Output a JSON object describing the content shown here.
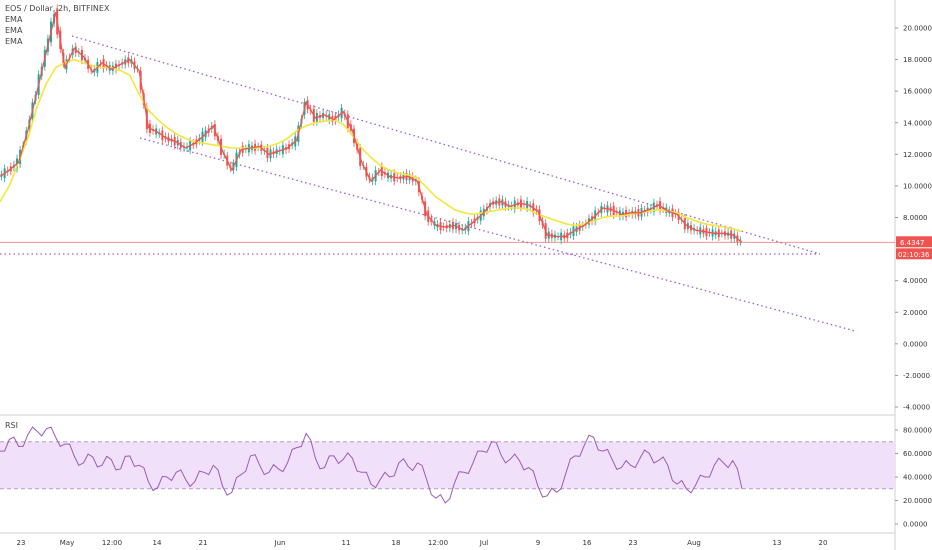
{
  "legend": {
    "symbol": "EOS / Dollar, 2h, BITFINEX",
    "indicators": [
      "EMA",
      "EMA",
      "EMA"
    ]
  },
  "price_badge": {
    "value": "6.4347",
    "time": "02:10:36",
    "color": "#ef5350"
  },
  "colors": {
    "trend_lines": "#a05ad2",
    "ema_fast": "#ef5350",
    "ema_slow": "#f5e63c",
    "up": "#26a69a",
    "down": "#ef5350",
    "rsi_line": "#9c5bb5",
    "rsi_band": "#f0e0fa"
  },
  "chart_data": [
    {
      "type": "line",
      "title": "EOS / Dollar, 2h, BITFINEX",
      "y_axis_ticks": [
        "20.0000",
        "18.0000",
        "16.0000",
        "14.0000",
        "12.0000",
        "10.0000",
        "8.0000",
        "4.0000",
        "2.0000",
        "0.0000",
        "-2.0000",
        "-4.0000"
      ],
      "ylim": [
        -4.5,
        21.5
      ],
      "x_axis_ticks": [
        "23",
        "May",
        "12:00",
        "14",
        "21",
        "Jun",
        "11",
        "18",
        "12:00",
        "Jul",
        "9",
        "16",
        "23",
        "Aug",
        "13",
        "20"
      ],
      "series": [
        {
          "values": [
            10.6,
            11.0,
            11.5,
            13.5,
            16.0,
            18.5,
            21.0,
            17.5,
            18.7,
            18.2,
            17.2,
            17.8,
            17.4,
            17.7,
            18.0,
            17.3,
            13.7,
            13.4,
            13.0,
            12.8,
            12.4,
            12.7,
            13.2,
            13.8,
            12.2,
            11.0,
            12.3,
            12.4,
            12.5,
            12.0,
            12.2,
            12.4,
            12.9,
            15.3,
            14.3,
            14.5,
            14.2,
            14.7,
            13.5,
            11.5,
            10.3,
            11.0,
            10.6,
            10.5,
            10.6,
            10.3,
            8.2,
            7.5,
            7.4,
            7.5,
            7.2,
            7.7,
            8.2,
            8.9,
            9.0,
            8.7,
            8.9,
            8.8,
            8.4,
            6.9,
            6.8,
            6.8,
            7.2,
            7.5,
            8.0,
            8.6,
            8.5,
            8.2,
            8.3,
            8.3,
            8.5,
            8.8,
            8.4,
            8.2,
            7.5,
            7.2,
            7.1,
            7.0,
            7.0,
            6.9,
            6.43
          ]
        },
        {
          "values": [
            9.0,
            10.0,
            11.5,
            13.0,
            15.0,
            16.5,
            17.5,
            17.8,
            18.0,
            17.8,
            17.6,
            17.5,
            17.5,
            17.3,
            17.0,
            15.8,
            14.8,
            14.2,
            13.7,
            13.3,
            13.0,
            12.8,
            12.7,
            12.6,
            12.5,
            12.4,
            12.4,
            12.4,
            12.4,
            12.5,
            12.7,
            13.0,
            13.5,
            13.8,
            14.0,
            14.1,
            14.2,
            13.9,
            13.2,
            12.4,
            11.8,
            11.3,
            11.0,
            10.8,
            10.7,
            10.5,
            9.9,
            9.3,
            8.9,
            8.5,
            8.3,
            8.2,
            8.3,
            8.4,
            8.5,
            8.6,
            8.6,
            8.5,
            8.2,
            8.0,
            7.8,
            7.6,
            7.5,
            7.6,
            7.8,
            8.0,
            8.1,
            8.1,
            8.2,
            8.3,
            8.4,
            8.5,
            8.4,
            8.3,
            8.0,
            7.8,
            7.6,
            7.5,
            7.4,
            7.3,
            7.1
          ]
        }
      ]
    },
    {
      "type": "line",
      "title": "RSI",
      "y_axis_ticks": [
        "80.0000",
        "60.0000",
        "40.0000",
        "20.0000",
        "0.0000"
      ],
      "ylim": [
        -5,
        88
      ],
      "bands": [
        30,
        70
      ],
      "x_axis_ticks": [
        "23",
        "May",
        "12:00",
        "14",
        "21",
        "Jun",
        "11",
        "18",
        "12:00",
        "Jul",
        "9",
        "16",
        "23",
        "Aug",
        "13",
        "20"
      ],
      "series": [
        {
          "values": [
            62,
            72,
            66,
            76,
            79,
            81,
            74,
            68,
            58,
            52,
            57,
            50,
            55,
            47,
            58,
            50,
            36,
            31,
            40,
            44,
            38,
            36,
            44,
            50,
            32,
            27,
            42,
            58,
            50,
            44,
            47,
            52,
            65,
            77,
            56,
            48,
            58,
            55,
            56,
            44,
            34,
            38,
            40,
            52,
            49,
            52,
            38,
            22,
            18,
            35,
            44,
            52,
            62,
            70,
            59,
            55,
            54,
            48,
            32,
            24,
            27,
            43,
            58,
            67,
            74,
            62,
            55,
            48,
            50,
            56,
            60,
            54,
            50,
            34,
            30,
            33,
            40,
            50,
            52,
            54,
            30
          ]
        }
      ]
    }
  ]
}
